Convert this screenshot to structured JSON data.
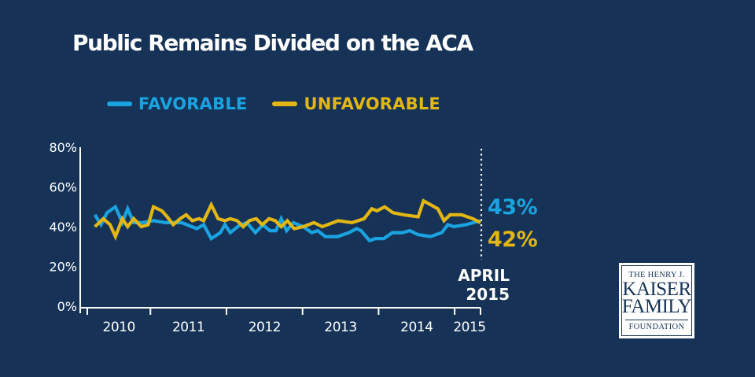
{
  "chart_data": {
    "type": "line",
    "title": "Public Remains Divided on the ACA",
    "xlabel": "",
    "ylabel": "",
    "ylim": [
      0,
      80
    ],
    "xlim": [
      2010.0,
      2015.35
    ],
    "yticks": [
      "0%",
      "20%",
      "40%",
      "60%",
      "80%"
    ],
    "ytick_values": [
      0,
      20,
      40,
      60,
      80
    ],
    "xticks": [
      "2010",
      "2011",
      "2012",
      "2013",
      "2014",
      "2015"
    ],
    "xtick_boundaries": [
      2010.0,
      2010.83,
      2011.83,
      2012.83,
      2013.83,
      2014.83,
      2015.17
    ],
    "grid": false,
    "legend_position": "top-left",
    "series": [
      {
        "name": "FAVORABLE",
        "color": "#1aa3e0",
        "x": [
          2010.1,
          2010.18,
          2010.26,
          2010.37,
          2010.46,
          2010.53,
          2010.61,
          2010.72,
          2010.87,
          2011.03,
          2011.24,
          2011.44,
          2011.53,
          2011.63,
          2011.75,
          2011.81,
          2011.88,
          2012.01,
          2012.1,
          2012.21,
          2012.31,
          2012.4,
          2012.48,
          2012.55,
          2012.62,
          2012.71,
          2012.84,
          2012.95,
          2013.03,
          2013.13,
          2013.29,
          2013.44,
          2013.54,
          2013.6,
          2013.71,
          2013.79,
          2013.9,
          2014.01,
          2014.14,
          2014.24,
          2014.35,
          2014.51,
          2014.66,
          2014.74,
          2014.82,
          2014.98,
          2015.17
        ],
        "values": [
          46,
          41,
          47,
          50,
          42,
          49,
          42,
          42,
          43,
          42,
          42,
          39,
          41,
          34,
          37,
          41,
          37,
          41,
          42,
          37,
          41,
          38,
          38,
          44,
          38,
          42,
          40,
          37,
          38,
          35,
          35,
          37,
          39,
          38,
          33,
          34,
          34,
          37,
          37,
          38,
          36,
          35,
          37,
          41,
          40,
          41,
          43
        ]
      },
      {
        "name": "UNFAVORABLE",
        "color": "#e2b714",
        "x": [
          2010.1,
          2010.21,
          2010.3,
          2010.37,
          2010.46,
          2010.53,
          2010.61,
          2010.71,
          2010.8,
          2010.87,
          2010.98,
          2011.05,
          2011.13,
          2011.22,
          2011.3,
          2011.38,
          2011.47,
          2011.53,
          2011.63,
          2011.72,
          2011.81,
          2011.88,
          2011.97,
          2012.05,
          2012.13,
          2012.22,
          2012.3,
          2012.39,
          2012.47,
          2012.55,
          2012.63,
          2012.72,
          2012.84,
          2012.98,
          2013.09,
          2013.3,
          2013.48,
          2013.64,
          2013.74,
          2013.81,
          2013.91,
          2014.02,
          2014.16,
          2014.35,
          2014.42,
          2014.61,
          2014.69,
          2014.77,
          2014.92,
          2015.07,
          2015.17
        ],
        "values": [
          40,
          44,
          41,
          35,
          44,
          40,
          44,
          40,
          41,
          50,
          48,
          45,
          41,
          44,
          46,
          43,
          44,
          43,
          51,
          44,
          43,
          44,
          43,
          40,
          43,
          44,
          41,
          44,
          43,
          40,
          43,
          39,
          40,
          42,
          40,
          43,
          42,
          44,
          49,
          48,
          50,
          47,
          46,
          45,
          53,
          49,
          43,
          46,
          46,
          44,
          42
        ]
      }
    ],
    "annotations": {
      "latest_favorable": "43%",
      "latest_unfavorable": "42%",
      "latest_label_line1": "APRIL",
      "latest_label_line2": "2015"
    }
  },
  "branding": {
    "logo_line1": "THE HENRY J.",
    "logo_line2": "KAISER",
    "logo_line3": "FAMILY",
    "logo_line4": "FOUNDATION"
  },
  "colors": {
    "background": "#163357",
    "favorable": "#1aa3e0",
    "unfavorable": "#e2b714",
    "text": "#ffffff"
  }
}
